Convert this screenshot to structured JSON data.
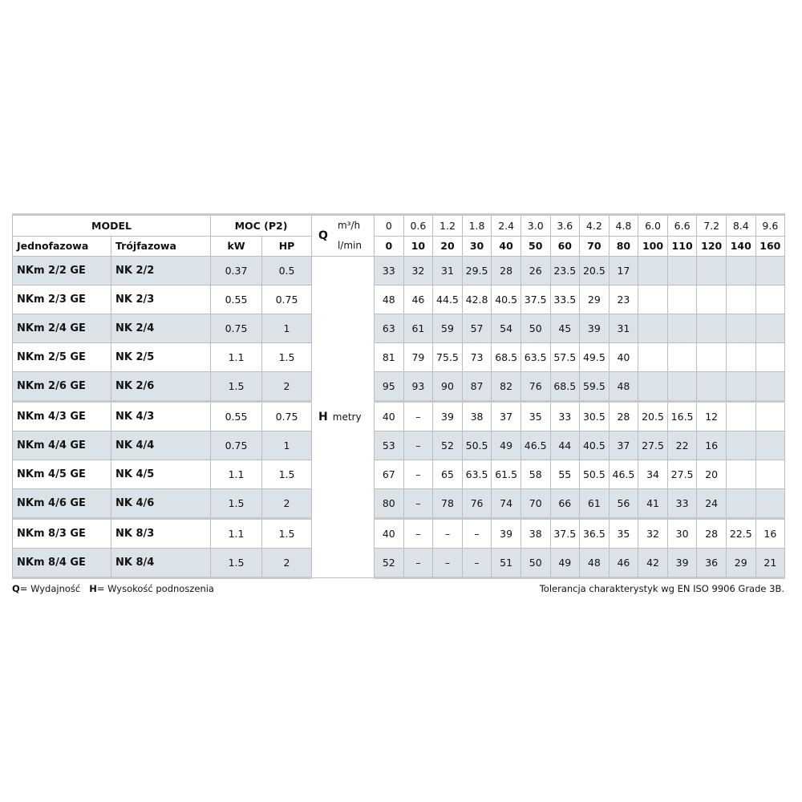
{
  "header": {
    "model": "MODEL",
    "power": "MOC (P2)",
    "single_phase": "Jednofazowa",
    "three_phase": "Trójfazowa",
    "kw": "kW",
    "hp": "HP",
    "q_label": "Q",
    "q_unit_m3h": "m³/h",
    "q_unit_lmin": "l/min",
    "flow_m3h": [
      "0",
      "0.6",
      "1.2",
      "1.8",
      "2.4",
      "3.0",
      "3.6",
      "4.2",
      "4.8",
      "6.0",
      "6.6",
      "7.2",
      "8.4",
      "9.6"
    ],
    "flow_lmin": [
      "0",
      "10",
      "20",
      "30",
      "40",
      "50",
      "60",
      "70",
      "80",
      "100",
      "110",
      "120",
      "140",
      "160"
    ],
    "h_label": "H",
    "h_unit": "metry"
  },
  "rows": [
    {
      "single": "NKm 2/2 GE",
      "three": "NK 2/2",
      "kw": "0.37",
      "hp": "0.5",
      "h": [
        "33",
        "32",
        "31",
        "29.5",
        "28",
        "26",
        "23.5",
        "20.5",
        "17",
        "",
        "",
        "",
        "",
        ""
      ]
    },
    {
      "single": "NKm 2/3 GE",
      "three": "NK 2/3",
      "kw": "0.55",
      "hp": "0.75",
      "h": [
        "48",
        "46",
        "44.5",
        "42.8",
        "40.5",
        "37.5",
        "33.5",
        "29",
        "23",
        "",
        "",
        "",
        "",
        ""
      ]
    },
    {
      "single": "NKm 2/4 GE",
      "three": "NK 2/4",
      "kw": "0.75",
      "hp": "1",
      "h": [
        "63",
        "61",
        "59",
        "57",
        "54",
        "50",
        "45",
        "39",
        "31",
        "",
        "",
        "",
        "",
        ""
      ]
    },
    {
      "single": "NKm 2/5 GE",
      "three": "NK 2/5",
      "kw": "1.1",
      "hp": "1.5",
      "h": [
        "81",
        "79",
        "75.5",
        "73",
        "68.5",
        "63.5",
        "57.5",
        "49.5",
        "40",
        "",
        "",
        "",
        "",
        ""
      ]
    },
    {
      "single": "NKm 2/6 GE",
      "three": "NK 2/6",
      "kw": "1.5",
      "hp": "2",
      "h": [
        "95",
        "93",
        "90",
        "87",
        "82",
        "76",
        "68.5",
        "59.5",
        "48",
        "",
        "",
        "",
        "",
        ""
      ]
    },
    {
      "single": "NKm 4/3 GE",
      "three": "NK 4/3",
      "kw": "0.55",
      "hp": "0.75",
      "h": [
        "40",
        "–",
        "39",
        "38",
        "37",
        "35",
        "33",
        "30.5",
        "28",
        "20.5",
        "16.5",
        "12",
        "",
        ""
      ]
    },
    {
      "single": "NKm 4/4 GE",
      "three": "NK 4/4",
      "kw": "0.75",
      "hp": "1",
      "h": [
        "53",
        "–",
        "52",
        "50.5",
        "49",
        "46.5",
        "44",
        "40.5",
        "37",
        "27.5",
        "22",
        "16",
        "",
        ""
      ]
    },
    {
      "single": "NKm 4/5 GE",
      "three": "NK 4/5",
      "kw": "1.1",
      "hp": "1.5",
      "h": [
        "67",
        "–",
        "65",
        "63.5",
        "61.5",
        "58",
        "55",
        "50.5",
        "46.5",
        "34",
        "27.5",
        "20",
        "",
        ""
      ]
    },
    {
      "single": "NKm 4/6 GE",
      "three": "NK 4/6",
      "kw": "1.5",
      "hp": "2",
      "h": [
        "80",
        "–",
        "78",
        "76",
        "74",
        "70",
        "66",
        "61",
        "56",
        "41",
        "33",
        "24",
        "",
        ""
      ]
    },
    {
      "single": "NKm 8/3 GE",
      "three": "NK 8/3",
      "kw": "1.1",
      "hp": "1.5",
      "h": [
        "40",
        "–",
        "–",
        "–",
        "39",
        "38",
        "37.5",
        "36.5",
        "35",
        "32",
        "30",
        "28",
        "22.5",
        "16"
      ]
    },
    {
      "single": "NKm 8/4 GE",
      "three": "NK 8/4",
      "kw": "1.5",
      "hp": "2",
      "h": [
        "52",
        "–",
        "–",
        "–",
        "51",
        "50",
        "49",
        "48",
        "46",
        "42",
        "39",
        "36",
        "29",
        "21"
      ]
    }
  ],
  "footer": {
    "q_key": "Q",
    "q_desc": "= Wydajność",
    "h_key": "H",
    "h_desc": "= Wysokość podnoszenia",
    "tolerance": "Tolerancja charakterystyk wg EN ISO 9906 Grade 3B."
  },
  "colors": {
    "row_shade": "#dce3e8",
    "border": "#bcbcbc"
  }
}
